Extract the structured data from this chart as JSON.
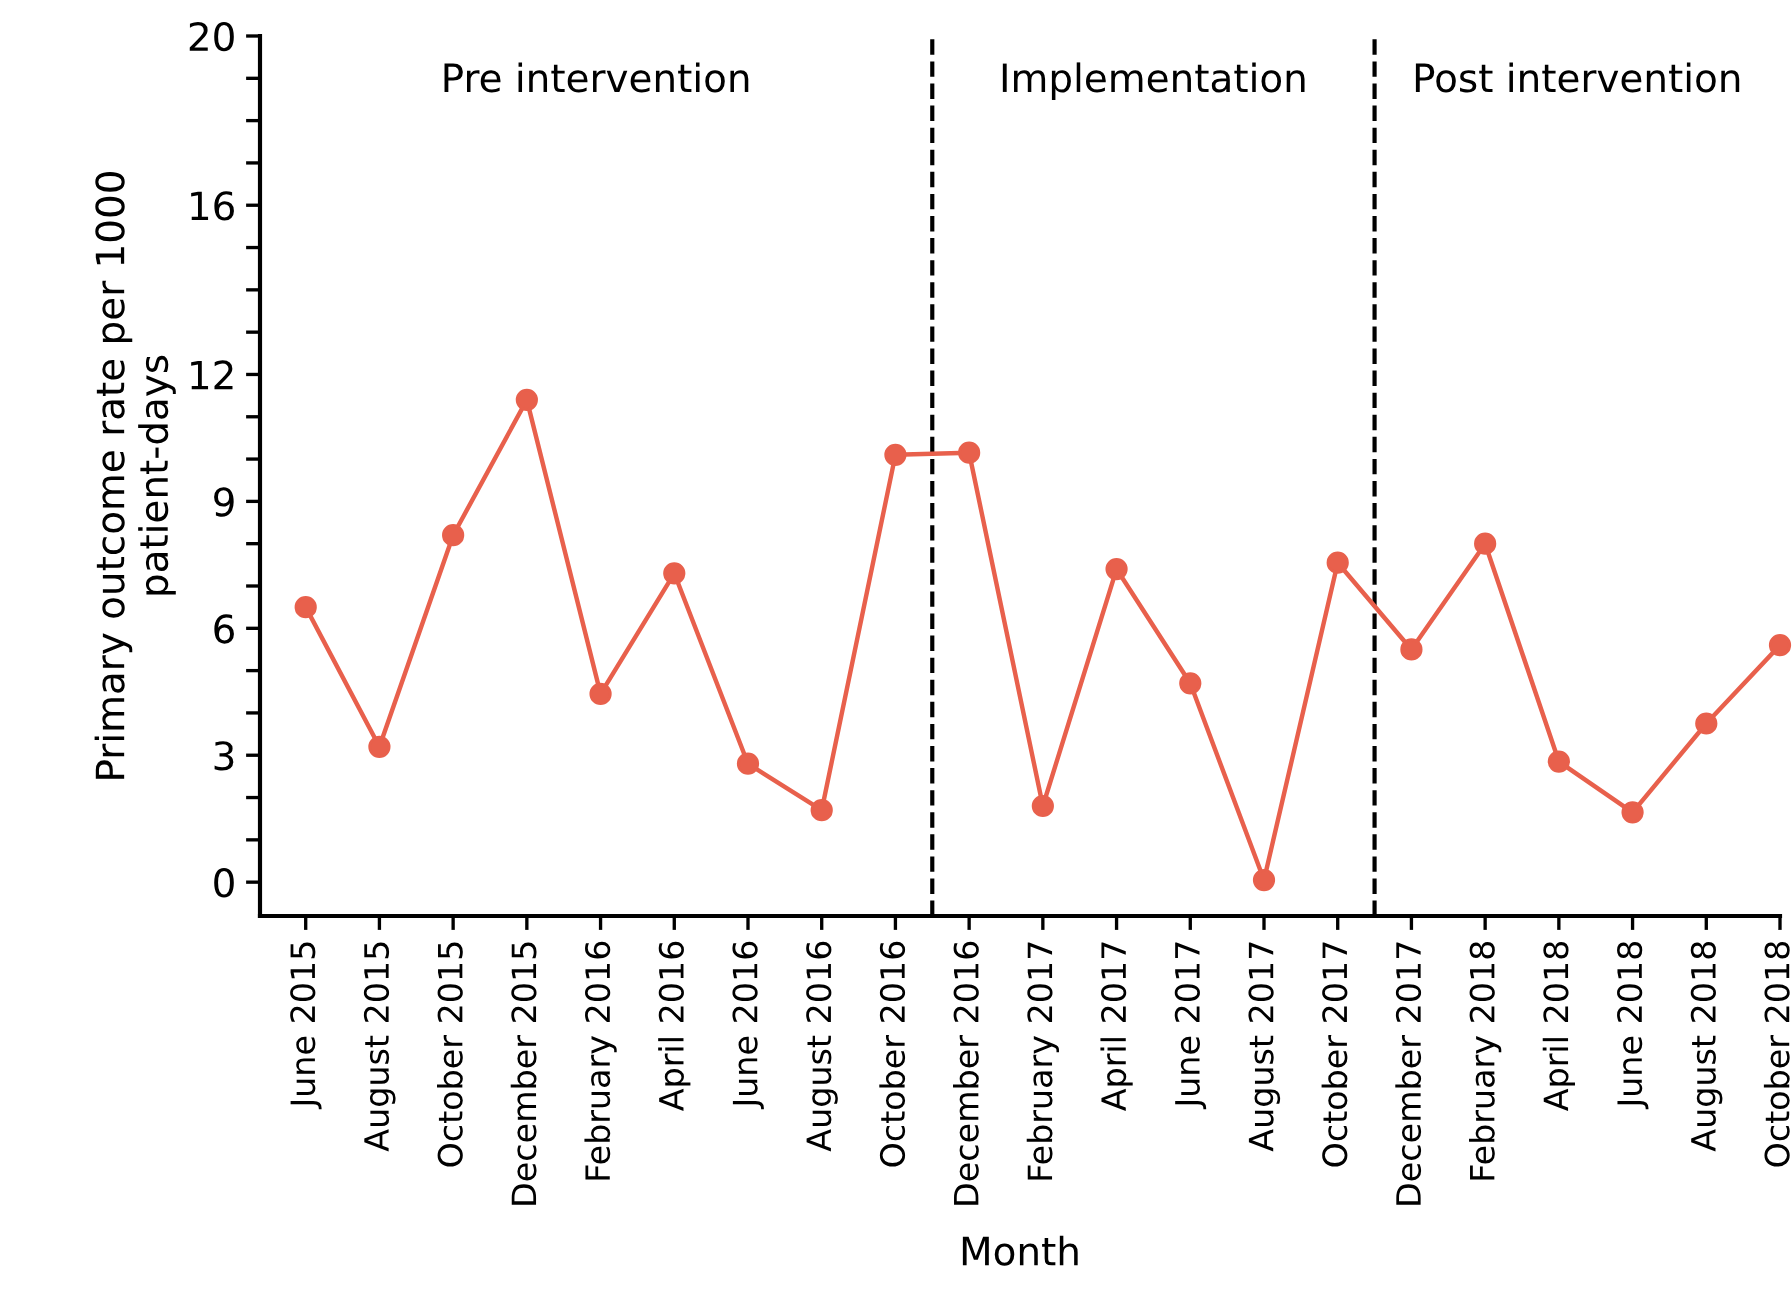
{
  "chart_data": {
    "type": "line",
    "xlabel": "Month",
    "ylabel": "Primary outcome rate per 1000\npatient-days",
    "categories": [
      "June 2015",
      "August 2015",
      "October 2015",
      "December 2015",
      "February 2016",
      "April 2016",
      "June 2016",
      "August 2016",
      "October 2016",
      "December 2016",
      "February 2017",
      "April 2017",
      "June 2017",
      "August 2017",
      "October 2017",
      "December 2017",
      "February 2018",
      "April 2018",
      "June 2018",
      "August 2018",
      "October 2018"
    ],
    "series": [
      {
        "color": "#e8604c",
        "values": [
          6.5,
          3.2,
          8.2,
          11.4,
          4.45,
          7.3,
          2.8,
          1.7,
          10.1,
          10.15,
          1.8,
          7.4,
          4.7,
          0.05,
          7.55,
          5.5,
          8.0,
          2.85,
          1.65,
          3.75,
          5.6
        ]
      }
    ],
    "ylim": [
      -0.8,
      20
    ],
    "yticks": [
      0,
      {
        "value": 1,
        "label": null
      },
      {
        "value": 2,
        "label": null
      },
      3,
      {
        "value": 4,
        "label": null
      },
      {
        "value": 5,
        "label": null
      },
      6,
      {
        "value": 7,
        "label": null
      },
      {
        "value": 8,
        "label": null
      },
      9,
      {
        "value": 10,
        "label": null
      },
      {
        "value": 11,
        "label": null
      },
      12,
      {
        "value": 13,
        "label": null
      },
      {
        "value": 14,
        "label": null
      },
      {
        "value": 15,
        "label": null
      },
      16,
      {
        "value": 17,
        "label": null
      },
      {
        "value": 18,
        "label": null
      },
      {
        "value": 19,
        "label": null
      },
      20
    ],
    "annotations": [
      "Pre intervention",
      "Implementation",
      "Post intervention"
    ],
    "marker": "circle",
    "line_style": "solid",
    "grid": false,
    "legend": false
  }
}
